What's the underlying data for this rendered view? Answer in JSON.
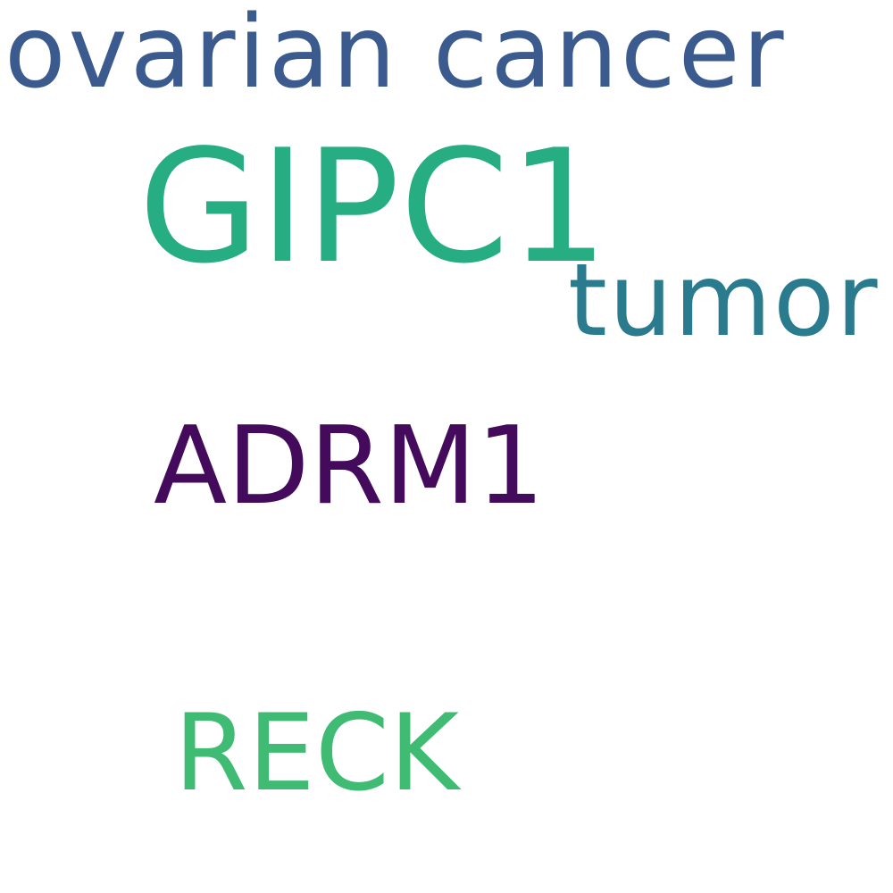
{
  "words": [
    {
      "text": "ovarian cancer",
      "color": "#3b5b8f"
    },
    {
      "text": "GIPC1",
      "color": "#26ad81"
    },
    {
      "text": "tumor",
      "color": "#2a7b8e"
    },
    {
      "text": "ADRM1",
      "color": "#440a5c"
    },
    {
      "text": "RECK",
      "color": "#3fbb74"
    }
  ]
}
